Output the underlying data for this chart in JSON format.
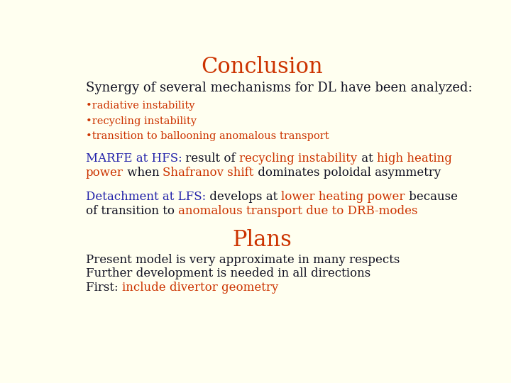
{
  "background_color": "#fffff0",
  "title": "Conclusion",
  "title_color": "#cc3300",
  "title_fontsize": 22,
  "subtitle": "Synergy of several mechanisms for DL have been analyzed:",
  "subtitle_color": "#111122",
  "subtitle_fontsize": 13,
  "bullets": [
    "•radiative instability",
    "•recycling instability",
    "•transition to ballooning anomalous transport"
  ],
  "bullet_color": "#cc3300",
  "bullet_fontsize": 10.5,
  "marfe_fontsize": 12,
  "detach_fontsize": 12,
  "plans_title": "Plans",
  "plans_title_color": "#cc3300",
  "plans_title_fontsize": 22,
  "plans_fontsize": 12,
  "dark_color": "#111122",
  "blue_color": "#2222aa",
  "red_color": "#cc3300"
}
